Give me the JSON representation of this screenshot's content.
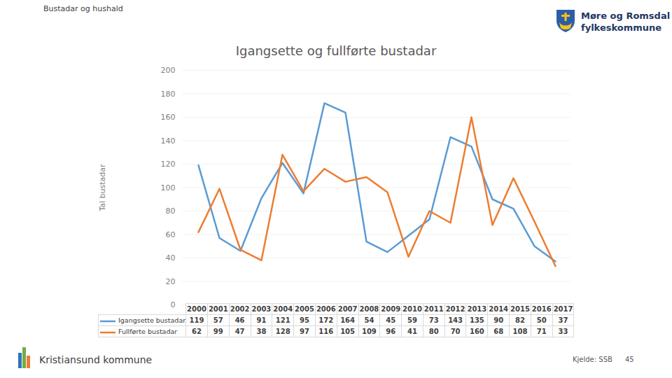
{
  "chart_data": {
    "type": "line",
    "title": "Igangsette og fullførte bustadar",
    "header": "Bustadar og hushald",
    "organisation": [
      "Møre og Romsdal",
      "fylkeskommune"
    ],
    "footer": "Kristiansund kommune",
    "source": "Kjelde: SSB",
    "page": 45,
    "y_label": "Tal bustadar",
    "categories": [
      "2000",
      "2001",
      "2002",
      "2003",
      "2004",
      "2005",
      "2006",
      "2007",
      "2008",
      "2009",
      "2010",
      "2011",
      "2012",
      "2013",
      "2014",
      "2015",
      "2016",
      "2017"
    ],
    "series": [
      {
        "name": "Igangsette bustadar",
        "color": "#5b9bd5",
        "values": [
          119,
          57,
          46,
          91,
          121,
          95,
          172,
          164,
          54,
          45,
          59,
          73,
          143,
          135,
          90,
          82,
          50,
          37
        ]
      },
      {
        "name": "Fullførte bustadar",
        "color": "#ed7d31",
        "values": [
          62,
          99,
          47,
          38,
          128,
          97,
          116,
          105,
          109,
          96,
          41,
          80,
          70,
          160,
          68,
          108,
          71,
          33
        ]
      }
    ],
    "ylim": [
      0,
      200
    ],
    "yticks": [
      0,
      20,
      40,
      60,
      80,
      100,
      120,
      140,
      160,
      180,
      200
    ],
    "grid": true
  }
}
